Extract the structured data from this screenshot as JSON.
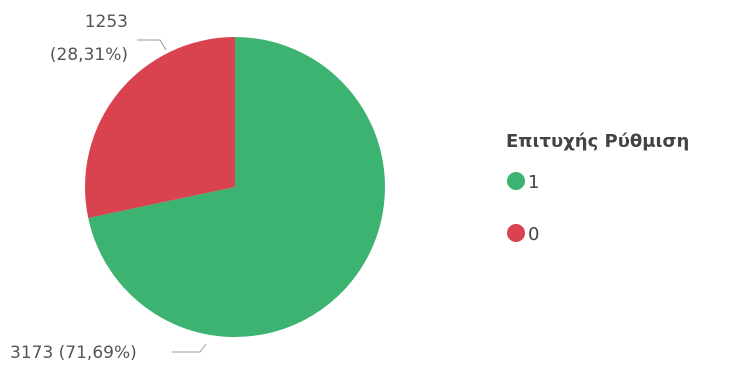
{
  "chart_data": {
    "type": "pie",
    "legend_title": "Επιτυχής Ρύθμιση",
    "legend_position": "right",
    "slices": [
      {
        "category": "1",
        "value": 3173,
        "label_value": "3173",
        "label_pct": "(71,69%)",
        "color": "#3cb371"
      },
      {
        "category": "0",
        "value": 1253,
        "label_value": "1253",
        "label_pct": "(28,31%)",
        "color": "#d9434f"
      }
    ]
  }
}
